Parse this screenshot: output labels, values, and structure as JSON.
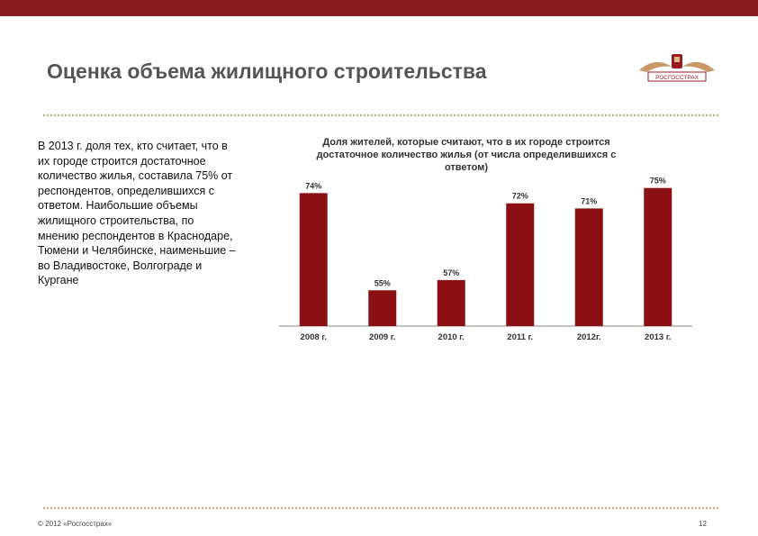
{
  "page": {
    "title": "Оценка объема жилищного строительства",
    "text": "В 2013 г. доля тех, кто считает, что в их городе строится достаточное количество жилья, составила 75% от респондентов, определившихся с ответом. Наибольшие объемы жилищного строительства, по мнению респондентов в Краснодаре, Тюмени и Челябинске, наименьшие – во Владивостоке, Волгограде и Кургане",
    "footer": "© 2012 «Росгосстрах»",
    "page_number": "12",
    "logo_text": "РОСГОССТРАХ"
  },
  "colors": {
    "top_bar": "#8b1a1f",
    "bar": "#8b1013",
    "title": "#555555",
    "dots": "#b9b36a"
  },
  "chart_data": {
    "type": "bar",
    "title": "Доля жителей, которые считают, что в их городе строится достаточное количество жилья (от числа определившихся с ответом)",
    "categories": [
      "2008 г.",
      "2009 г.",
      "2010 г.",
      "2011 г.",
      "2012г.",
      "2013 г."
    ],
    "values": [
      74,
      55,
      57,
      72,
      71,
      75
    ],
    "labels": [
      "74%",
      "55%",
      "57%",
      "72%",
      "71%",
      "75%"
    ],
    "ylim": [
      48,
      76
    ],
    "grid": false,
    "legend": "none"
  }
}
